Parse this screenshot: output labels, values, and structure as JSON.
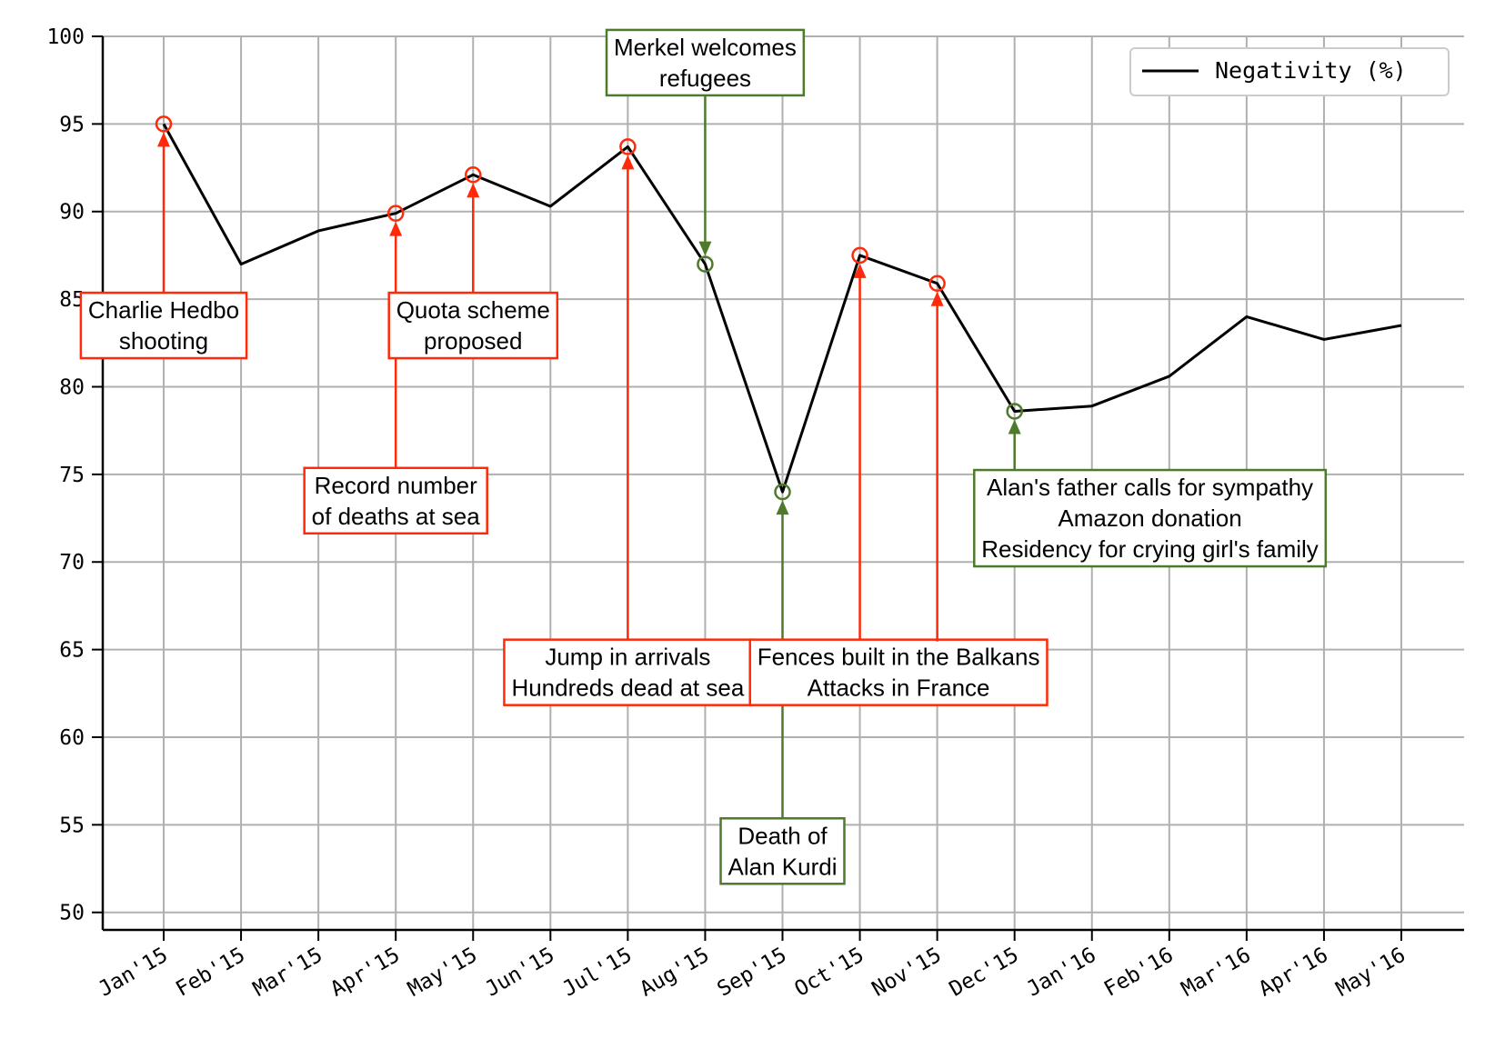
{
  "chart_data": {
    "type": "line",
    "title": "",
    "xlabel": "",
    "ylabel": "",
    "categories": [
      "Jan'15",
      "Feb'15",
      "Mar'15",
      "Apr'15",
      "May'15",
      "Jun'15",
      "Jul'15",
      "Aug'15",
      "Sep'15",
      "Oct'15",
      "Nov'15",
      "Dec'15",
      "Jan'16",
      "Feb'16",
      "Mar'16",
      "Apr'16",
      "May'16"
    ],
    "x_dates": [
      "2015-01-01",
      "2015-02-01",
      "2015-03-01",
      "2015-04-01",
      "2015-05-01",
      "2015-06-01",
      "2015-07-01",
      "2015-08-01",
      "2015-09-01",
      "2015-10-01",
      "2015-11-01",
      "2015-12-01",
      "2016-01-01",
      "2016-02-01",
      "2016-03-01",
      "2016-04-01",
      "2016-05-01"
    ],
    "series": [
      {
        "name": "Negativity (%)",
        "color": "#000000",
        "values": [
          95.0,
          87.0,
          88.9,
          89.9,
          92.1,
          90.3,
          93.7,
          87.0,
          74.0,
          87.5,
          85.9,
          78.6,
          78.9,
          80.6,
          84.0,
          82.7,
          83.5
        ]
      }
    ],
    "yticks": [
      50,
      55,
      60,
      65,
      70,
      75,
      80,
      85,
      90,
      95,
      100
    ],
    "ylim": [
      49,
      100
    ],
    "grid": true,
    "legend": "top-right",
    "colors": {
      "negative": "#ff2a0a",
      "positive": "#4e7a2b",
      "line": "#000000",
      "grid": "#b0b0b0"
    },
    "annotations": [
      {
        "index": 0,
        "tone": "negative",
        "lines": [
          "Charlie Hedbo",
          "shooting"
        ],
        "label_y": 83.5
      },
      {
        "index": 3,
        "tone": "negative",
        "lines": [
          "Record number",
          "of deaths at sea"
        ],
        "label_y": 73.5
      },
      {
        "index": 4,
        "tone": "negative",
        "lines": [
          "Quota scheme",
          "proposed"
        ],
        "label_y": 83.5
      },
      {
        "index": 6,
        "tone": "negative",
        "lines": [
          "Jump in arrivals",
          "Hundreds dead at sea"
        ],
        "label_y": 63.7
      },
      {
        "index": 7,
        "tone": "positive",
        "lines": [
          "Merkel welcomes",
          "refugees"
        ],
        "label_y": 98.5
      },
      {
        "index": 8,
        "tone": "positive",
        "lines": [
          "Death of",
          "Alan Kurdi"
        ],
        "label_y": 53.5
      },
      {
        "index": 9,
        "tone": "negative",
        "lines": [
          "Fences built in the Balkans",
          "Attacks in France"
        ],
        "label_y": 63.7,
        "label_x_offset": 0.5
      },
      {
        "index": 10,
        "tone": "negative",
        "lines": []
      },
      {
        "index": 11,
        "tone": "positive",
        "lines": [
          "Alan's father calls for sympathy",
          "Amazon donation",
          "Residency for crying girl's family"
        ],
        "label_y": 72.5,
        "label_x_offset": 1.75
      }
    ]
  }
}
